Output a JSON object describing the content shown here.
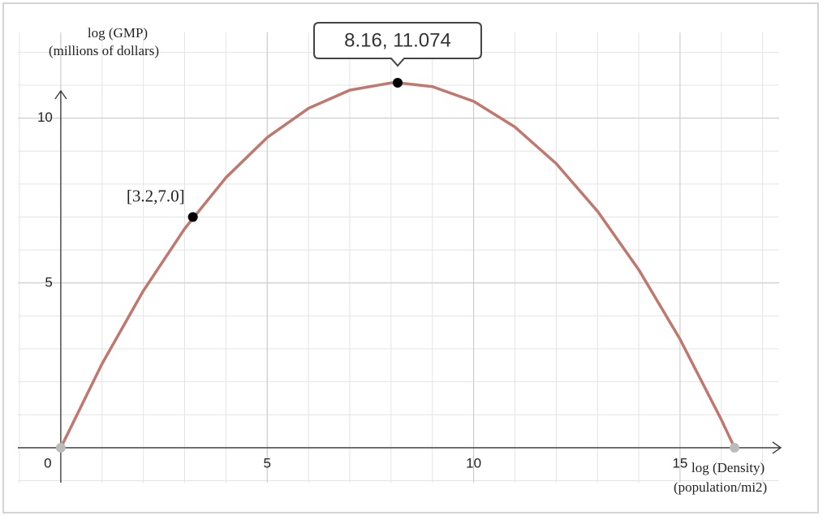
{
  "chart_data": {
    "type": "line",
    "y_label": [
      "log (GMP)",
      "(millions of dollars)"
    ],
    "x_label": [
      "log (Density)",
      "(population/mi2)"
    ],
    "x": [
      0,
      1,
      2,
      3,
      4,
      5,
      6,
      7,
      8,
      8.16,
      9,
      10,
      11,
      12,
      13,
      14,
      15,
      16,
      16.32
    ],
    "series": [
      {
        "color": "#c0776e",
        "values": [
          0,
          2.548,
          4.763,
          6.646,
          8.196,
          9.413,
          10.298,
          10.85,
          11.07,
          11.074,
          10.957,
          10.511,
          9.732,
          8.622,
          7.178,
          5.402,
          3.293,
          0.852,
          0
        ]
      }
    ],
    "points": [
      {
        "x": 0,
        "y": 0,
        "color": "#bbbbbb"
      },
      {
        "x": 16.32,
        "y": 0,
        "color": "#bbbbbb"
      },
      {
        "x": 3.2,
        "y": 7.0,
        "color": "#000000",
        "label": "[3.2,7.0]"
      },
      {
        "x": 8.16,
        "y": 11.074,
        "color": "#000000",
        "label": "8.16, 11.074"
      }
    ],
    "xlim": [
      -1.04,
      17.4
    ],
    "ylim": [
      -1.06,
      12.6
    ],
    "xticks": [
      0,
      5,
      10,
      15
    ],
    "yticks": [
      5,
      10
    ],
    "grid": true,
    "minor_grid": 1
  }
}
